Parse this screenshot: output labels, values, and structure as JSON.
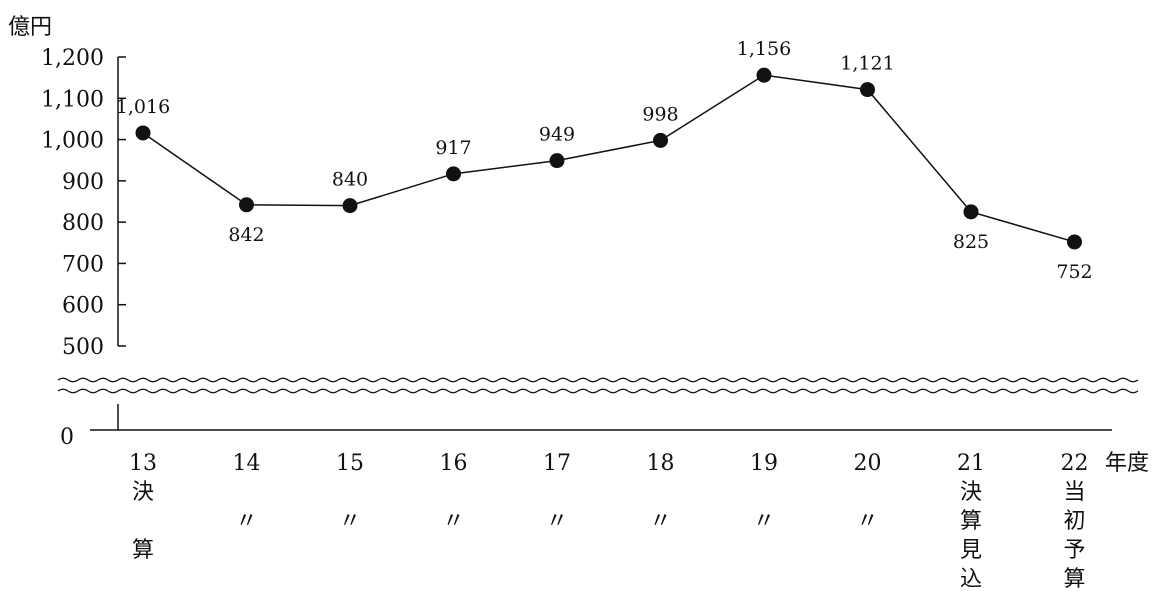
{
  "chart_data": {
    "type": "line",
    "title": "",
    "ylabel": "億円",
    "xlabel": "年度",
    "ylim": [
      500,
      1200
    ],
    "y_break": {
      "below": 500,
      "baseline": 0
    },
    "yticks": [
      "1,200",
      "1,100",
      "1,000",
      "900",
      "800",
      "700",
      "600",
      "500"
    ],
    "ytick_values": [
      1200,
      1100,
      1000,
      900,
      800,
      700,
      600,
      500
    ],
    "y_zero_label": "0",
    "categories": [
      "13",
      "14",
      "15",
      "16",
      "17",
      "18",
      "19",
      "20",
      "21",
      "22"
    ],
    "category_notes": [
      [
        "決",
        "",
        "算"
      ],
      [
        "",
        "〃",
        ""
      ],
      [
        "",
        "〃",
        ""
      ],
      [
        "",
        "〃",
        ""
      ],
      [
        "",
        "〃",
        ""
      ],
      [
        "",
        "〃",
        ""
      ],
      [
        "",
        "〃",
        ""
      ],
      [
        "",
        "〃",
        ""
      ],
      [
        "決",
        "算",
        "見",
        "込"
      ],
      [
        "当",
        "初",
        "予",
        "算"
      ]
    ],
    "values": [
      1016,
      842,
      840,
      917,
      949,
      998,
      1156,
      1121,
      825,
      752
    ],
    "value_labels": [
      "1,016",
      "842",
      "840",
      "917",
      "949",
      "998",
      "1,156",
      "1,121",
      "825",
      "752"
    ],
    "label_positions": [
      "above",
      "below",
      "above",
      "above",
      "above",
      "above",
      "above",
      "above",
      "below",
      "below"
    ],
    "grid": false,
    "line_color": "#111111",
    "marker_color": "#111111"
  }
}
